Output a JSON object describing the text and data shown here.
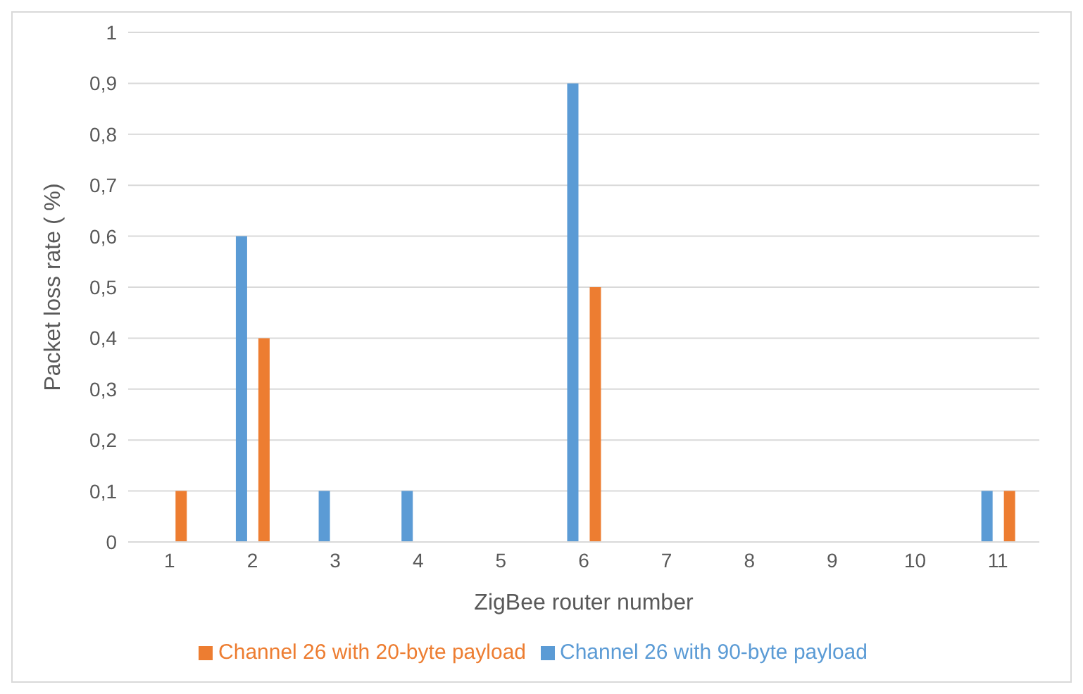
{
  "chart_data": {
    "type": "bar",
    "xlabel": "ZigBee router number",
    "ylabel": "Packet loss rate ( %)",
    "categories": [
      "1",
      "2",
      "3",
      "4",
      "5",
      "6",
      "7",
      "8",
      "9",
      "10",
      "11"
    ],
    "series": [
      {
        "name": "Channel 26 with 90-byte payload",
        "color": "#5b9bd5",
        "values": [
          0,
          0.6,
          0.1,
          0.1,
          0,
          0.9,
          0,
          0,
          0,
          0,
          0.1
        ]
      },
      {
        "name": "Channel 26 with 20-byte payload",
        "color": "#ed7d31",
        "values": [
          0.1,
          0.4,
          0,
          0,
          0,
          0.5,
          0,
          0,
          0,
          0,
          0.1
        ]
      }
    ],
    "ylim": [
      0,
      1
    ],
    "yticks": [
      {
        "value": 0,
        "label": "0"
      },
      {
        "value": 0.1,
        "label": "0,1"
      },
      {
        "value": 0.2,
        "label": "0,2"
      },
      {
        "value": 0.3,
        "label": "0,3"
      },
      {
        "value": 0.4,
        "label": "0,4"
      },
      {
        "value": 0.5,
        "label": "0,5"
      },
      {
        "value": 0.6,
        "label": "0,6"
      },
      {
        "value": 0.7,
        "label": "0,7"
      },
      {
        "value": 0.8,
        "label": "0,8"
      },
      {
        "value": 0.9,
        "label": "0,9"
      },
      {
        "value": 1,
        "label": "1"
      }
    ],
    "grid": "y",
    "legend": "bottom"
  }
}
